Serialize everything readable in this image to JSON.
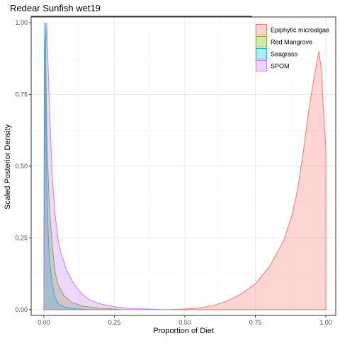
{
  "chart_data": {
    "type": "area",
    "title": "Redear Sunfish wet19",
    "xlabel": "Proportion of Diet",
    "ylabel": "Scaled Posterior Density",
    "xlim": [
      -0.045,
      1.035
    ],
    "ylim": [
      -0.02,
      1.02
    ],
    "x_ticks": [
      "0.00",
      "0.25",
      "0.50",
      "0.75",
      "1.00"
    ],
    "y_ticks": [
      "0.00",
      "0.25",
      "0.50",
      "0.75",
      "1.00"
    ],
    "grid": true,
    "legend_position": "top-right",
    "series": [
      {
        "name": "Epiphytic microalgae",
        "fill": "#F8766D",
        "points": [
          [
            0.43,
            0
          ],
          [
            0.5,
            0.002
          ],
          [
            0.55,
            0.006
          ],
          [
            0.6,
            0.014
          ],
          [
            0.65,
            0.03
          ],
          [
            0.7,
            0.055
          ],
          [
            0.75,
            0.09
          ],
          [
            0.8,
            0.15
          ],
          [
            0.85,
            0.24
          ],
          [
            0.88,
            0.33
          ],
          [
            0.9,
            0.42
          ],
          [
            0.92,
            0.55
          ],
          [
            0.94,
            0.7
          ],
          [
            0.96,
            0.82
          ],
          [
            0.975,
            0.9
          ],
          [
            0.985,
            0.83
          ],
          [
            0.99,
            0.72
          ],
          [
            1.0,
            0.56
          ],
          [
            1.0,
            0
          ]
        ]
      },
      {
        "name": "Red Mangrove",
        "fill": "#7CAE00",
        "points": [
          [
            0.0,
            0
          ],
          [
            0.003,
            0.75
          ],
          [
            0.005,
            1.0
          ],
          [
            0.008,
            0.8
          ],
          [
            0.012,
            0.55
          ],
          [
            0.02,
            0.35
          ],
          [
            0.03,
            0.22
          ],
          [
            0.04,
            0.13
          ],
          [
            0.05,
            0.09
          ],
          [
            0.07,
            0.05
          ],
          [
            0.1,
            0.025
          ],
          [
            0.14,
            0.012
          ],
          [
            0.2,
            0.005
          ],
          [
            0.25,
            0.002
          ],
          [
            0.28,
            0
          ]
        ]
      },
      {
        "name": "Seagrass",
        "fill": "#00BFC4",
        "points": [
          [
            0.0,
            0
          ],
          [
            0.002,
            0.9
          ],
          [
            0.004,
            1.0
          ],
          [
            0.007,
            0.7
          ],
          [
            0.01,
            0.45
          ],
          [
            0.015,
            0.28
          ],
          [
            0.02,
            0.17
          ],
          [
            0.03,
            0.09
          ],
          [
            0.04,
            0.045
          ],
          [
            0.05,
            0.022
          ],
          [
            0.07,
            0.01
          ],
          [
            0.1,
            0.004
          ],
          [
            0.15,
            0.001
          ],
          [
            0.2,
            0
          ]
        ]
      },
      {
        "name": "SPOM",
        "fill": "#C77CFF",
        "points": [
          [
            0.0,
            0
          ],
          [
            0.006,
            0.85
          ],
          [
            0.01,
            1.0
          ],
          [
            0.015,
            0.85
          ],
          [
            0.02,
            0.7
          ],
          [
            0.03,
            0.46
          ],
          [
            0.04,
            0.33
          ],
          [
            0.05,
            0.25
          ],
          [
            0.06,
            0.2
          ],
          [
            0.08,
            0.14
          ],
          [
            0.1,
            0.1
          ],
          [
            0.13,
            0.06
          ],
          [
            0.16,
            0.035
          ],
          [
            0.2,
            0.02
          ],
          [
            0.25,
            0.01
          ],
          [
            0.3,
            0.005
          ],
          [
            0.35,
            0.003
          ],
          [
            0.43,
            0
          ]
        ]
      }
    ]
  }
}
